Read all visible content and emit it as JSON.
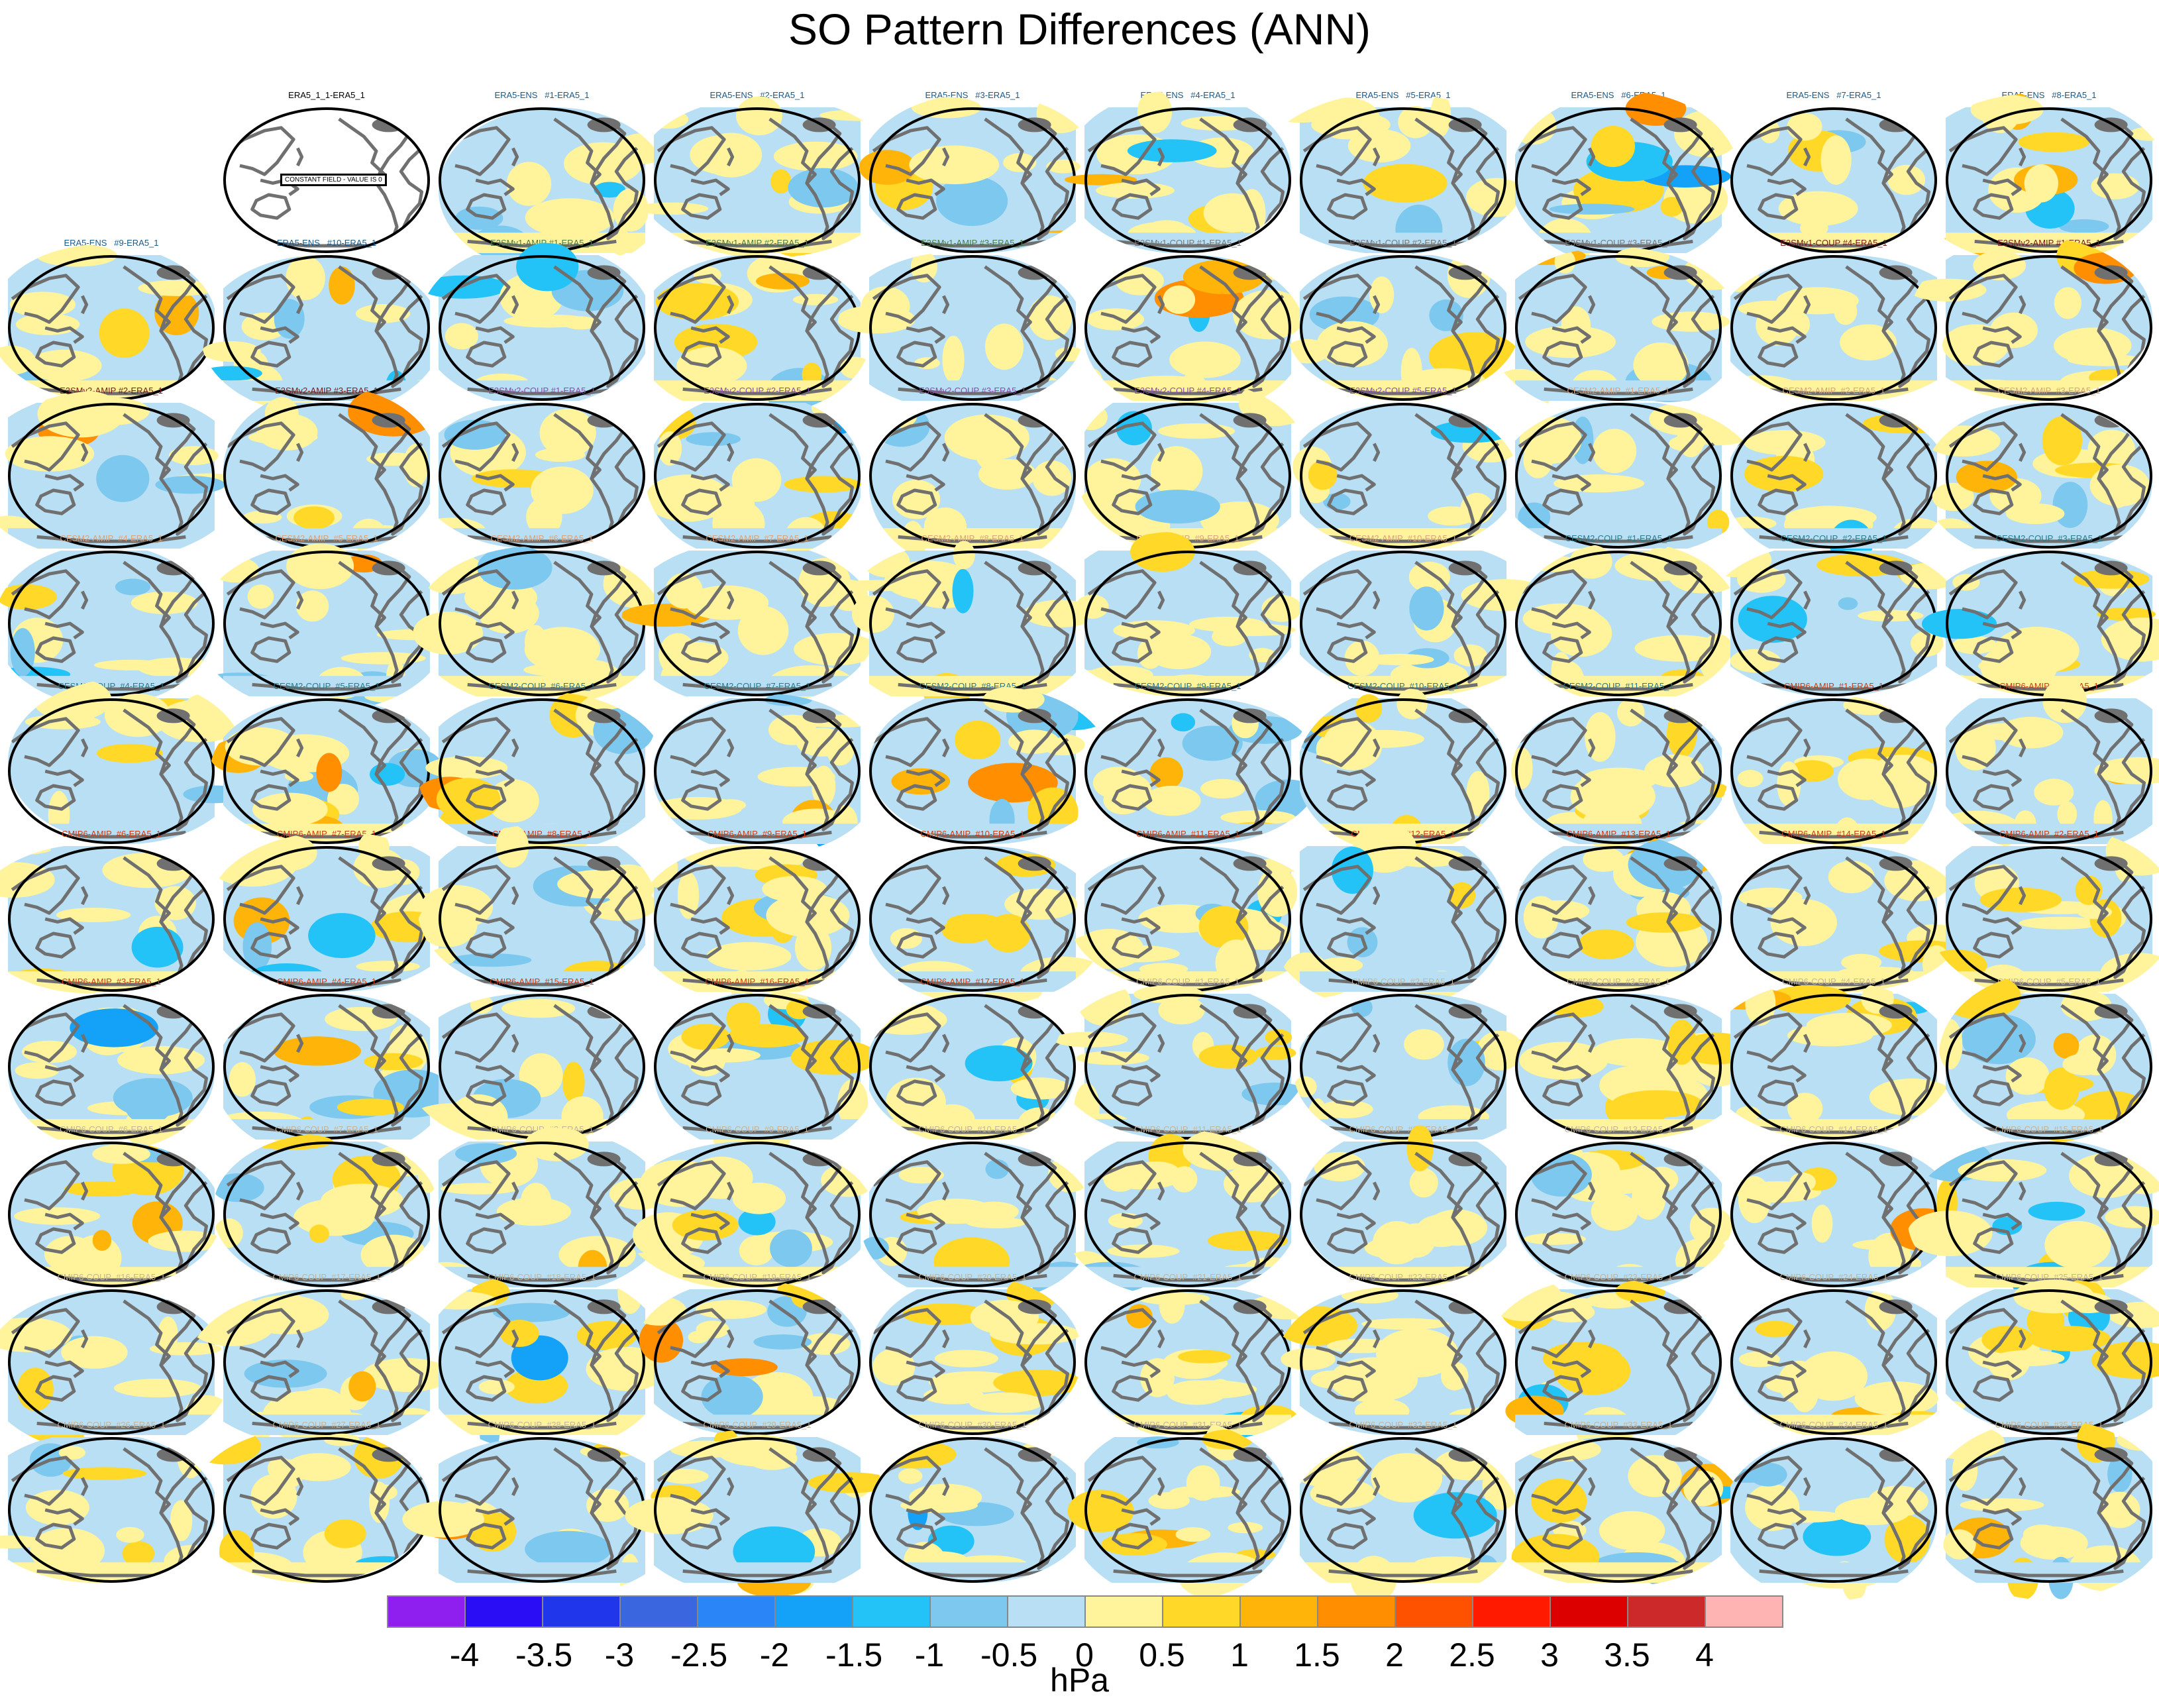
{
  "title": "SO Pattern Differences (ANN)",
  "chart_data": {
    "type": "heatmap",
    "title": "SO Pattern Differences (ANN)",
    "map_projection": "Robinson (Pacific-centered) global map panels",
    "variable": "sea level pressure pattern difference",
    "grid": "10 rows x 10 columns (first cell of row 1 empty)",
    "colorbar": {
      "units": "hPa",
      "levels": [
        -4,
        -3.5,
        -3,
        -2.5,
        -2,
        -1.5,
        -1,
        -0.5,
        0,
        0.5,
        1,
        1.5,
        2,
        2.5,
        3,
        3.5,
        4
      ],
      "tick_labels": [
        "-4",
        "-3.5",
        "-3",
        "-2.5",
        "-2",
        "-1.5",
        "-1",
        "-0.5",
        "0",
        "0.5",
        "1",
        "1.5",
        "2",
        "2.5",
        "3",
        "3.5",
        "4"
      ],
      "colors": [
        "#8e1fef",
        "#2a0cf5",
        "#1f36ea",
        "#3a67e0",
        "#2a86f6",
        "#13a2f7",
        "#24c3f7",
        "#7cc8ee",
        "#b8dff3",
        "#fff49c",
        "#ffd828",
        "#ffb40a",
        "#ff8e00",
        "#ff5200",
        "#ff1a00",
        "#dd0000",
        "#cc2a2a",
        "#ffb4b4"
      ]
    },
    "constant_field_label": "CONSTANT FIELD - VALUE IS 0",
    "panels": [
      {
        "title": "ERA5_1_1-ERA5_1",
        "color": "#000000",
        "constant": true
      },
      {
        "title": "ERA5-ENS   #1-ERA5_1",
        "color": "#1a5a8a"
      },
      {
        "title": "ERA5-ENS   #2-ERA5_1",
        "color": "#1a5a8a"
      },
      {
        "title": "ERA5-ENS   #3-ERA5_1",
        "color": "#1a5a8a"
      },
      {
        "title": "ERA5-ENS   #4-ERA5_1",
        "color": "#1a5a8a"
      },
      {
        "title": "ERA5-ENS   #5-ERA5_1",
        "color": "#1a5a8a"
      },
      {
        "title": "ERA5-ENS   #6-ERA5_1",
        "color": "#1a5a8a"
      },
      {
        "title": "ERA5-ENS   #7-ERA5_1",
        "color": "#1a5a8a"
      },
      {
        "title": "ERA5-ENS   #8-ERA5_1",
        "color": "#1a5a8a"
      },
      {
        "title": "ERA5-ENS   #9-ERA5_1",
        "color": "#1a5a8a"
      },
      {
        "title": "ERA5-ENS   #10-ERA5_1",
        "color": "#1a5a8a"
      },
      {
        "title": "E3SMv1-AMIP #1-ERA5_1",
        "color": "#4a7a4a"
      },
      {
        "title": "E3SMv1-AMIP #2-ERA5_1",
        "color": "#4a7a4a"
      },
      {
        "title": "E3SMv1-AMIP #3-ERA5_1",
        "color": "#4a7a4a"
      },
      {
        "title": "E3SMv1-COUP #1-ERA5_1",
        "color": "#777777"
      },
      {
        "title": "E3SMv1-COUP #2-ERA5_1",
        "color": "#777777"
      },
      {
        "title": "E3SMv1-COUP #3-ERA5_1",
        "color": "#777777"
      },
      {
        "title": "E3SMv1-COUP #4-ERA5_1",
        "color": "#7a1a1a"
      },
      {
        "title": "E3SMv2-AMIP #1-ERA5_1",
        "color": "#7a1a1a"
      },
      {
        "title": "E3SMv2-AMIP #2-ERA5_1",
        "color": "#7a1a1a"
      },
      {
        "title": "E3SMv2-AMIP #3-ERA5_1",
        "color": "#7a1a1a"
      },
      {
        "title": "E3SMv2-COUP #1-ERA5_1",
        "color": "#8a4aaa"
      },
      {
        "title": "E3SMv2-COUP #2-ERA5_1",
        "color": "#8a4aaa"
      },
      {
        "title": "E3SMv2-COUP #3-ERA5_1",
        "color": "#8a4aaa"
      },
      {
        "title": "E3SMv2-COUP #4-ERA5_1",
        "color": "#8a4aaa"
      },
      {
        "title": "E3SMv2-COUP #5-ERA5_1",
        "color": "#8a4aaa"
      },
      {
        "title": "CESM2-AMIP  #1-ERA5_1",
        "color": "#d9a27a"
      },
      {
        "title": "CESM2-AMIP  #2-ERA5_1",
        "color": "#d9a27a"
      },
      {
        "title": "CESM2-AMIP  #3-ERA5_1",
        "color": "#d9a27a"
      },
      {
        "title": "CESM2-AMIP  #4-ERA5_1",
        "color": "#d9a27a"
      },
      {
        "title": "CESM2-AMIP  #5-ERA5_1",
        "color": "#d9a27a"
      },
      {
        "title": "CESM2-AMIP  #6-ERA5_1",
        "color": "#d9a27a"
      },
      {
        "title": "CESM2-AMIP  #7-ERA5_1",
        "color": "#d9a27a"
      },
      {
        "title": "CESM2-AMIP  #8-ERA5_1",
        "color": "#d9a27a"
      },
      {
        "title": "CESM2-AMIP  #9-ERA5_1",
        "color": "#d9a27a"
      },
      {
        "title": "CESM2-AMIP  #10-ERA5_1",
        "color": "#d9a27a"
      },
      {
        "title": "CESM2-COUP  #1-ERA5_1",
        "color": "#2a7a8a"
      },
      {
        "title": "CESM2-COUP  #2-ERA5_1",
        "color": "#2a7a8a"
      },
      {
        "title": "CESM2-COUP  #3-ERA5_1",
        "color": "#2a7a8a"
      },
      {
        "title": "CESM2-COUP  #4-ERA5_1",
        "color": "#2a7a8a"
      },
      {
        "title": "CESM2-COUP  #5-ERA5_1",
        "color": "#2a7a8a"
      },
      {
        "title": "CESM2-COUP  #6-ERA5_1",
        "color": "#2a7a8a"
      },
      {
        "title": "CESM2-COUP  #7-ERA5_1",
        "color": "#2a7a8a"
      },
      {
        "title": "CESM2-COUP  #8-ERA5_1",
        "color": "#2a7a8a"
      },
      {
        "title": "CESM2-COUP  #9-ERA5_1",
        "color": "#2a7a8a"
      },
      {
        "title": "CESM2-COUP  #10-ERA5_1",
        "color": "#2a7a8a"
      },
      {
        "title": "CESM2-COUP  #11-ERA5_1",
        "color": "#2a7a8a"
      },
      {
        "title": "CMIP6-AMIP  #1-ERA5_1",
        "color": "#c8401a"
      },
      {
        "title": "CMIP6-AMIP  #5-ERA5_1",
        "color": "#c8401a"
      },
      {
        "title": "CMIP6-AMIP  #6-ERA5_1",
        "color": "#c8401a"
      },
      {
        "title": "CMIP6-AMIP  #7-ERA5_1",
        "color": "#c8401a"
      },
      {
        "title": "CMIP6-AMIP  #8-ERA5_1",
        "color": "#c8401a"
      },
      {
        "title": "CMIP6-AMIP  #9-ERA5_1",
        "color": "#c8401a"
      },
      {
        "title": "CMIP6-AMIP  #10-ERA5_1",
        "color": "#c8401a"
      },
      {
        "title": "CMIP6-AMIP  #11-ERA5_1",
        "color": "#c8401a"
      },
      {
        "title": "CMIP6-AMIP  #12-ERA5_1",
        "color": "#c8401a"
      },
      {
        "title": "CMIP6-AMIP  #13-ERA5_1",
        "color": "#c8401a"
      },
      {
        "title": "CMIP6-AMIP  #14-ERA5_1",
        "color": "#c8401a"
      },
      {
        "title": "CMIP6-AMIP  #2-ERA5_1",
        "color": "#c8401a"
      },
      {
        "title": "CMIP6-AMIP  #3-ERA5_1",
        "color": "#c8401a"
      },
      {
        "title": "CMIP6-AMIP  #4-ERA5_1",
        "color": "#c8401a"
      },
      {
        "title": "CMIP6-AMIP  #15-ERA5_1",
        "color": "#c8401a"
      },
      {
        "title": "CMIP6-AMIP  #16-ERA5_1",
        "color": "#c8401a"
      },
      {
        "title": "CMIP6-AMIP  #17-ERA5_1",
        "color": "#c8401a"
      },
      {
        "title": "CMIP6-COUP  #1-ERA5_1",
        "color": "#c4b49a"
      },
      {
        "title": "CMIP6-COUP  #2-ERA5_1",
        "color": "#c4b49a"
      },
      {
        "title": "CMIP6-COUP  #3-ERA5_1",
        "color": "#c4b49a"
      },
      {
        "title": "CMIP6-COUP  #4-ERA5_1",
        "color": "#c4b49a"
      },
      {
        "title": "CMIP6-COUP  #5-ERA5_1",
        "color": "#c4b49a"
      },
      {
        "title": "CMIP6-COUP  #6-ERA5_1",
        "color": "#c4b49a"
      },
      {
        "title": "CMIP6-COUP  #7-ERA5_1",
        "color": "#c4b49a"
      },
      {
        "title": "CMIP6-COUP  #8-ERA5_1",
        "color": "#c4b49a"
      },
      {
        "title": "CMIP6-COUP  #9-ERA5_1",
        "color": "#c4b49a"
      },
      {
        "title": "CMIP6-COUP  #10-ERA5_1",
        "color": "#c4b49a"
      },
      {
        "title": "CMIP6-COUP  #11-ERA5_1",
        "color": "#c4b49a"
      },
      {
        "title": "CMIP6-COUP  #12-ERA5_1",
        "color": "#c4b49a"
      },
      {
        "title": "CMIP6-COUP  #13-ERA5_1",
        "color": "#c4b49a"
      },
      {
        "title": "CMIP6-COUP  #14-ERA5_1",
        "color": "#c4b49a"
      },
      {
        "title": "CMIP6-COUP  #15-ERA5_1",
        "color": "#c4b49a"
      },
      {
        "title": "CMIP6-COUP  #16-ERA5_1",
        "color": "#c4b49a"
      },
      {
        "title": "CMIP6-COUP  #17-ERA5_1",
        "color": "#c4b49a"
      },
      {
        "title": "CMIP6-COUP  #18-ERA5_1",
        "color": "#c4b49a"
      },
      {
        "title": "CMIP6-COUP  #19-ERA5_1",
        "color": "#c4b49a"
      },
      {
        "title": "CMIP6-COUP  #20-ERA5_1",
        "color": "#c4b49a"
      },
      {
        "title": "CMIP6-COUP  #21-ERA5_1",
        "color": "#c4b49a"
      },
      {
        "title": "CMIP6-COUP  #22-ERA5_1",
        "color": "#c4b49a"
      },
      {
        "title": "CMIP6-COUP  #23-ERA5_1",
        "color": "#c4b49a"
      },
      {
        "title": "CMIP6-COUP  #24-ERA5_1",
        "color": "#c4b49a"
      },
      {
        "title": "CMIP6-COUP  #25-ERA5_1",
        "color": "#c4b49a"
      },
      {
        "title": "CMIP6-COUP  #26-ERA5_1",
        "color": "#c4b49a"
      },
      {
        "title": "CMIP6-COUP  #27-ERA5_1",
        "color": "#c4b49a"
      },
      {
        "title": "CMIP6-COUP  #28-ERA5_1",
        "color": "#c4b49a"
      },
      {
        "title": "CMIP6-COUP  #29-ERA5_1",
        "color": "#c4b49a"
      },
      {
        "title": "CMIP6-COUP  #30-ERA5_1",
        "color": "#c4b49a"
      },
      {
        "title": "CMIP6-COUP  #31-ERA5_1",
        "color": "#c4b49a"
      },
      {
        "title": "CMIP6-COUP  #32-ERA5_1",
        "color": "#c4b49a"
      },
      {
        "title": "CMIP6-COUP  #33-ERA5_1",
        "color": "#c4b49a"
      },
      {
        "title": "CMIP6-COUP  #34-ERA5_1",
        "color": "#c4b49a"
      },
      {
        "title": "CMIP6-COUP  #35-ERA5_1",
        "color": "#c4b49a"
      }
    ]
  }
}
